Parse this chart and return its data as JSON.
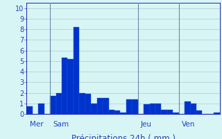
{
  "values": [
    0.7,
    0.0,
    1.0,
    0.0,
    1.7,
    2.0,
    5.3,
    5.2,
    8.2,
    2.0,
    1.9,
    1.0,
    1.5,
    1.5,
    0.4,
    0.3,
    0.1,
    1.4,
    1.4,
    0.0,
    0.9,
    1.0,
    1.0,
    0.4,
    0.4,
    0.1,
    0.0,
    1.2,
    1.0,
    0.3,
    0.0,
    0.0,
    0.1
  ],
  "day_labels": [
    "Mer",
    "Sam",
    "Jeu",
    "Ven"
  ],
  "day_bar_starts": [
    0,
    4,
    19,
    26
  ],
  "day_vlines": [
    3.5,
    18.5,
    25.5
  ],
  "xlabel": "Précipitations 24h ( mm )",
  "ylim": [
    0,
    10.5
  ],
  "yticks": [
    0,
    1,
    2,
    3,
    4,
    5,
    6,
    7,
    8,
    9,
    10
  ],
  "bar_color": "#0033cc",
  "bar_edge_color": "#1155dd",
  "background_color": "#d8f5f5",
  "grid_color": "#b0c8c8",
  "vline_color": "#6688aa",
  "axis_color": "#0000aa",
  "text_color": "#2244bb",
  "xlabel_fontsize": 8.5,
  "tick_fontsize": 7,
  "label_fontsize": 7.5
}
